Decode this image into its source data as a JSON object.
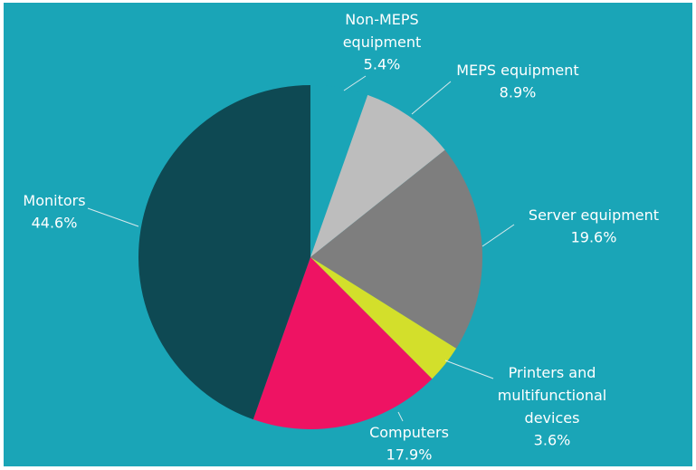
{
  "chart_data": {
    "type": "pie",
    "categories": [
      "Non-MEPS equipment",
      "MEPS equipment",
      "Server equipment",
      "Printers and multifunctional devices",
      "Computers",
      "Monitors"
    ],
    "values": [
      5.4,
      8.9,
      19.6,
      3.6,
      17.9,
      44.6
    ],
    "value_labels": [
      "5.4%",
      "8.9%",
      "19.6%",
      "3.6%",
      "17.9%",
      "44.6%"
    ],
    "colors": [
      "#1aa5b7",
      "#bdbdbd",
      "#7e7e7e",
      "#d3df2b",
      "#ee1363",
      "#0e4953"
    ]
  }
}
